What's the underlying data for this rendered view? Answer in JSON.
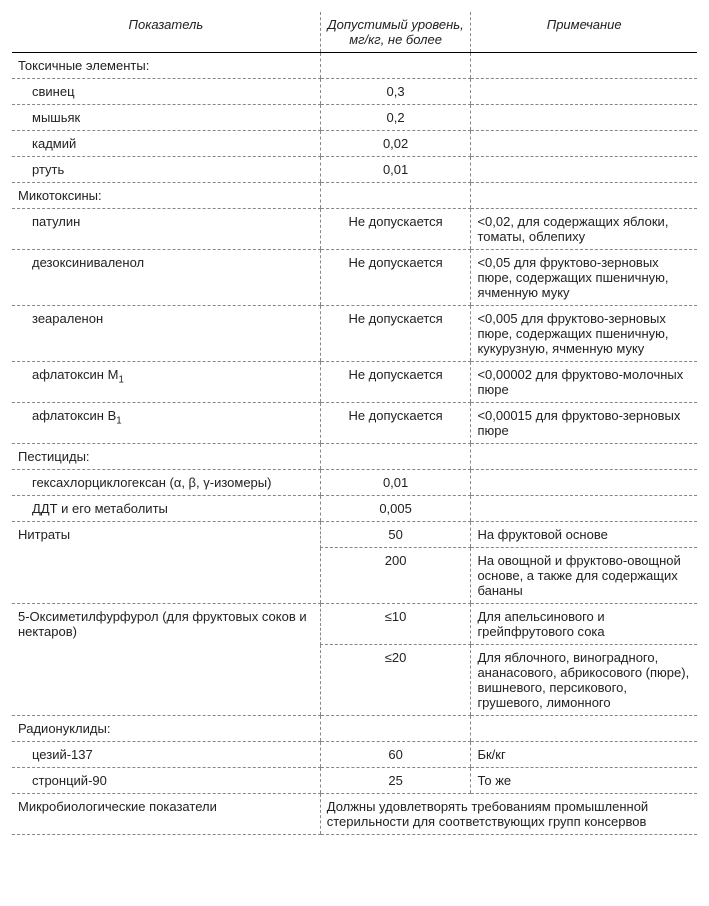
{
  "headers": {
    "col1": "Показатель",
    "col2": "Допустимый уровень, мг/кг, не более",
    "col3": "Примечание"
  },
  "sections": {
    "toxic": "Токсичные элементы:",
    "myco": "Микотоксины:",
    "pest": "Пестициды:",
    "nitr": "Нитраты",
    "omf": "5-Оксиметилфурфурол (для фруктовых соков и нектаров)",
    "radio": "Радионуклиды:",
    "micro": "Микробиологические показатели"
  },
  "rows": {
    "lead": {
      "name": "свинец",
      "val": "0,3",
      "note": ""
    },
    "arsenic": {
      "name": "мышьяк",
      "val": "0,2",
      "note": ""
    },
    "cadmium": {
      "name": "кадмий",
      "val": "0,02",
      "note": ""
    },
    "mercury": {
      "name": "ртуть",
      "val": "0,01",
      "note": ""
    },
    "patulin": {
      "name": "патулин",
      "val": "Не допускается",
      "note": "<0,02, для содержащих яблоки, томаты, облепиху"
    },
    "don": {
      "name": "дезоксиниваленол",
      "val": "Не допускается",
      "note": "<0,05 для фруктово-зерновых пюре, содержащих пшеничную, ячменную муку"
    },
    "zea": {
      "name": "зеараленон",
      "val": "Не допускается",
      "note": "<0,005 для фруктово-зерновых пюре, содержащих пшеничную, кукурузную, ячменную муку"
    },
    "aflaM1": {
      "name": "афлатоксин M",
      "sub": "1",
      "val": "Не допускается",
      "note": "<0,00002 для фруктово-молочных пюре"
    },
    "aflaB1": {
      "name": "афлатоксин B",
      "sub": "1",
      "val": "Не допускается",
      "note": "<0,00015 для фруктово-зерновых пюре"
    },
    "hch": {
      "name": "гексахлорциклогексан (α, β, γ-изомеры)",
      "val": "0,01",
      "note": ""
    },
    "ddt": {
      "name": "ДДТ и его метаболиты",
      "val": "0,005",
      "note": ""
    },
    "nitr1": {
      "val": "50",
      "note": "На фруктовой основе"
    },
    "nitr2": {
      "val": "200",
      "note": "На овощной и фруктово-овощной основе, а также для содержащих бананы"
    },
    "omf1": {
      "val": "≤10",
      "note": "Для апельсинового и грейпфрутового сока"
    },
    "omf2": {
      "val": "≤20",
      "note": "Для яблочного, виноградного, ананасового, абрикосового (пюре), вишневого, персикового, грушевого, лимонного"
    },
    "cs137": {
      "name": "цезий-137",
      "val": "60",
      "note": "Бк/кг"
    },
    "sr90": {
      "name": "стронций-90",
      "val": "25",
      "note": "То же"
    },
    "microNote": "Должны удовлетворять требованиям промышленной стерильности для соответствующих групп консервов"
  }
}
